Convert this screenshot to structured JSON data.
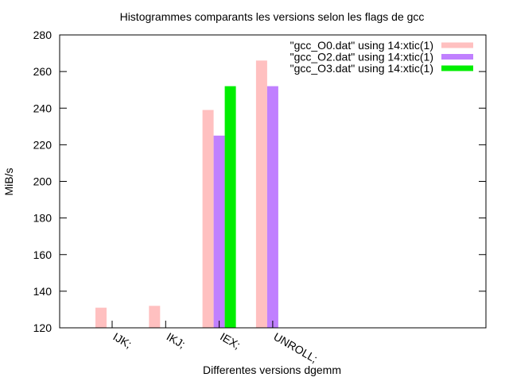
{
  "chart_data": {
    "type": "bar",
    "title": "Histogrammes comparants les versions selon les flags de gcc",
    "xlabel": "Differentes versions dgemm",
    "ylabel": "MiB/s",
    "ylim": [
      120,
      280
    ],
    "yticks": [
      120,
      140,
      160,
      180,
      200,
      220,
      240,
      260,
      280
    ],
    "categories": [
      "IJK;",
      "IKJ;",
      "IEX;",
      "UNROLL;"
    ],
    "legend_position": "top-right",
    "grid": false,
    "series": [
      {
        "name": "\"gcc_O0.dat\" using 14:xtic(1)",
        "color": "#ffc0c0",
        "values": [
          131,
          132,
          239,
          266
        ]
      },
      {
        "name": "\"gcc_O2.dat\" using 14:xtic(1)",
        "color": "#c080ff",
        "values": [
          null,
          null,
          225,
          252
        ]
      },
      {
        "name": "\"gcc_O3.dat\" using 14:xtic(1)",
        "color": "#00ee00",
        "values": [
          null,
          null,
          252,
          null
        ]
      }
    ]
  }
}
